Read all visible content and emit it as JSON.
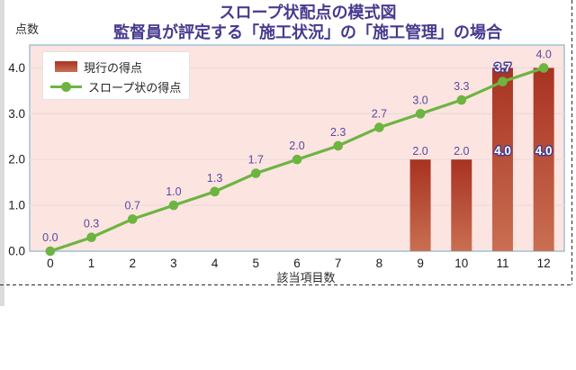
{
  "header": {
    "title_line1": "スロープ状配点の模式図",
    "title_line2": "監督員が評定する「施工状況」の「施工管理」の場合",
    "y_axis_corner_label": "点数"
  },
  "legend": {
    "bar_item_label": "現行の得点",
    "line_item_label": "スロープ状の得点"
  },
  "axes": {
    "x_label": "該当項目数"
  },
  "chart_data": {
    "type": "combo-bar-line",
    "title": "スロープ状配点の模式図",
    "subtitle": "監督員が評定する「施工状況」の「施工管理」の場合",
    "categories": [
      0,
      1,
      2,
      3,
      4,
      5,
      6,
      7,
      8,
      9,
      10,
      11,
      12
    ],
    "series": [
      {
        "name": "現行の得点",
        "type": "bar",
        "values": [
          null,
          null,
          null,
          null,
          null,
          null,
          null,
          null,
          null,
          2.0,
          2.0,
          4.0,
          4.0
        ],
        "label_styles": [
          null,
          null,
          null,
          null,
          null,
          null,
          null,
          null,
          null,
          "above",
          "above",
          "inside",
          "inside"
        ],
        "color_top": "#a83221",
        "color_bottom": "#c96f52"
      },
      {
        "name": "スロープ状の得点",
        "type": "line",
        "values": [
          0.0,
          0.3,
          0.7,
          1.0,
          1.3,
          1.7,
          2.0,
          2.3,
          2.7,
          3.0,
          3.3,
          3.7,
          4.0
        ],
        "color": "#6db441"
      }
    ],
    "xlabel": "該当項目数",
    "ylabel": "点数",
    "yticks": [
      0.0,
      1.0,
      2.0,
      3.0,
      4.0
    ],
    "ylim": [
      0,
      4.5
    ],
    "grid": "horizontal",
    "grid_color": "#ecdcdc",
    "plot_bg": "#fce4e1",
    "plot_border_color": "#a7c4d5",
    "data_label_color": "#5a4a9c",
    "data_label_format": "one-decimal",
    "outlined_line_label_indices": [
      11
    ],
    "legend_position": "top-left"
  }
}
